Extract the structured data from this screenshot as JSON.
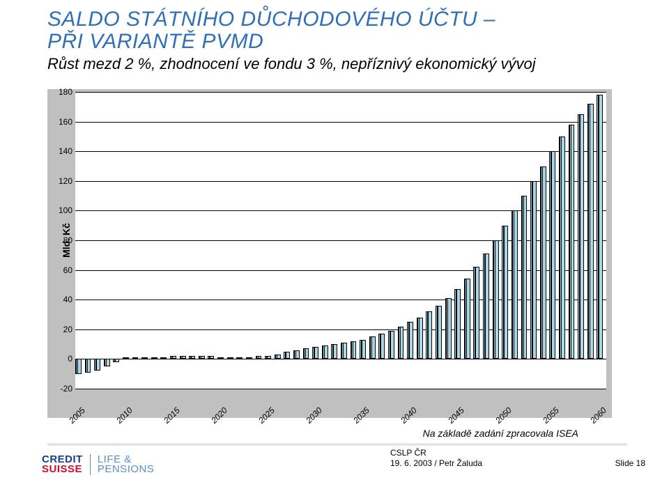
{
  "title": {
    "line1": "SALDO STÁTNÍHO DŮCHODOVÉHO ÚČTU –",
    "line2": "PŘI VARIANTĚ PVMD",
    "color": "#2e6fb8",
    "fontsize": 30
  },
  "subtitle": {
    "text": "Růst mezd 2 %, zhodnocení ve fondu 3 %, nepříznivý ekonomický vývoj",
    "color": "#000000",
    "fontsize": 22
  },
  "chart": {
    "type": "bar",
    "background_color": "#c0c0c0",
    "plot_background": "#ffffff",
    "grid_color": "#000000",
    "bar_fill": "#a6d8e8",
    "bar_border": "#000000",
    "y_label": "Mld. Kč",
    "y_label_fontsize": 14,
    "y_min": -20,
    "y_max": 180,
    "y_ticks": [
      -20,
      0,
      20,
      40,
      60,
      80,
      100,
      120,
      140,
      160,
      180
    ],
    "x_tick_labels": [
      "2005",
      "2010",
      "2015",
      "2020",
      "2025",
      "2030",
      "2035",
      "2040",
      "2045",
      "2050",
      "2055",
      "2060"
    ],
    "x_tick_years": [
      2005,
      2010,
      2015,
      2020,
      2025,
      2030,
      2035,
      2040,
      2045,
      2050,
      2055,
      2060
    ],
    "x_start_year": 2005,
    "x_end_year": 2060,
    "tick_fontsize": 12,
    "bar_width_ratio": 0.78,
    "bar_triples": true,
    "values": [
      -10,
      -9,
      -8,
      -5,
      -2,
      1,
      1,
      1,
      1,
      1,
      2,
      2,
      2,
      2,
      2,
      1,
      1,
      1,
      1,
      2,
      2,
      3,
      5,
      6,
      7,
      8,
      9,
      10,
      11,
      12,
      13,
      15,
      17,
      19,
      22,
      25,
      28,
      32,
      36,
      41,
      47,
      54,
      62,
      71,
      80,
      90,
      100,
      110,
      120,
      130,
      140,
      150,
      158,
      165,
      172,
      178
    ]
  },
  "footnote": "Na základě zadání zpracovala ISEA",
  "footer": {
    "org": "CSLP ČR",
    "date_author": "19. 6. 2003 / Petr Žaluda"
  },
  "slide_label": "Slide 18",
  "logo": {
    "cs_line1": "CREDIT",
    "cs_line2": "SUISSE",
    "cs_color1": "#1a3a8a",
    "cs_color2": "#c8102e",
    "lp_line1": "LIFE &",
    "lp_line2": "PENSIONS",
    "lp_color": "#5a8fc8"
  }
}
